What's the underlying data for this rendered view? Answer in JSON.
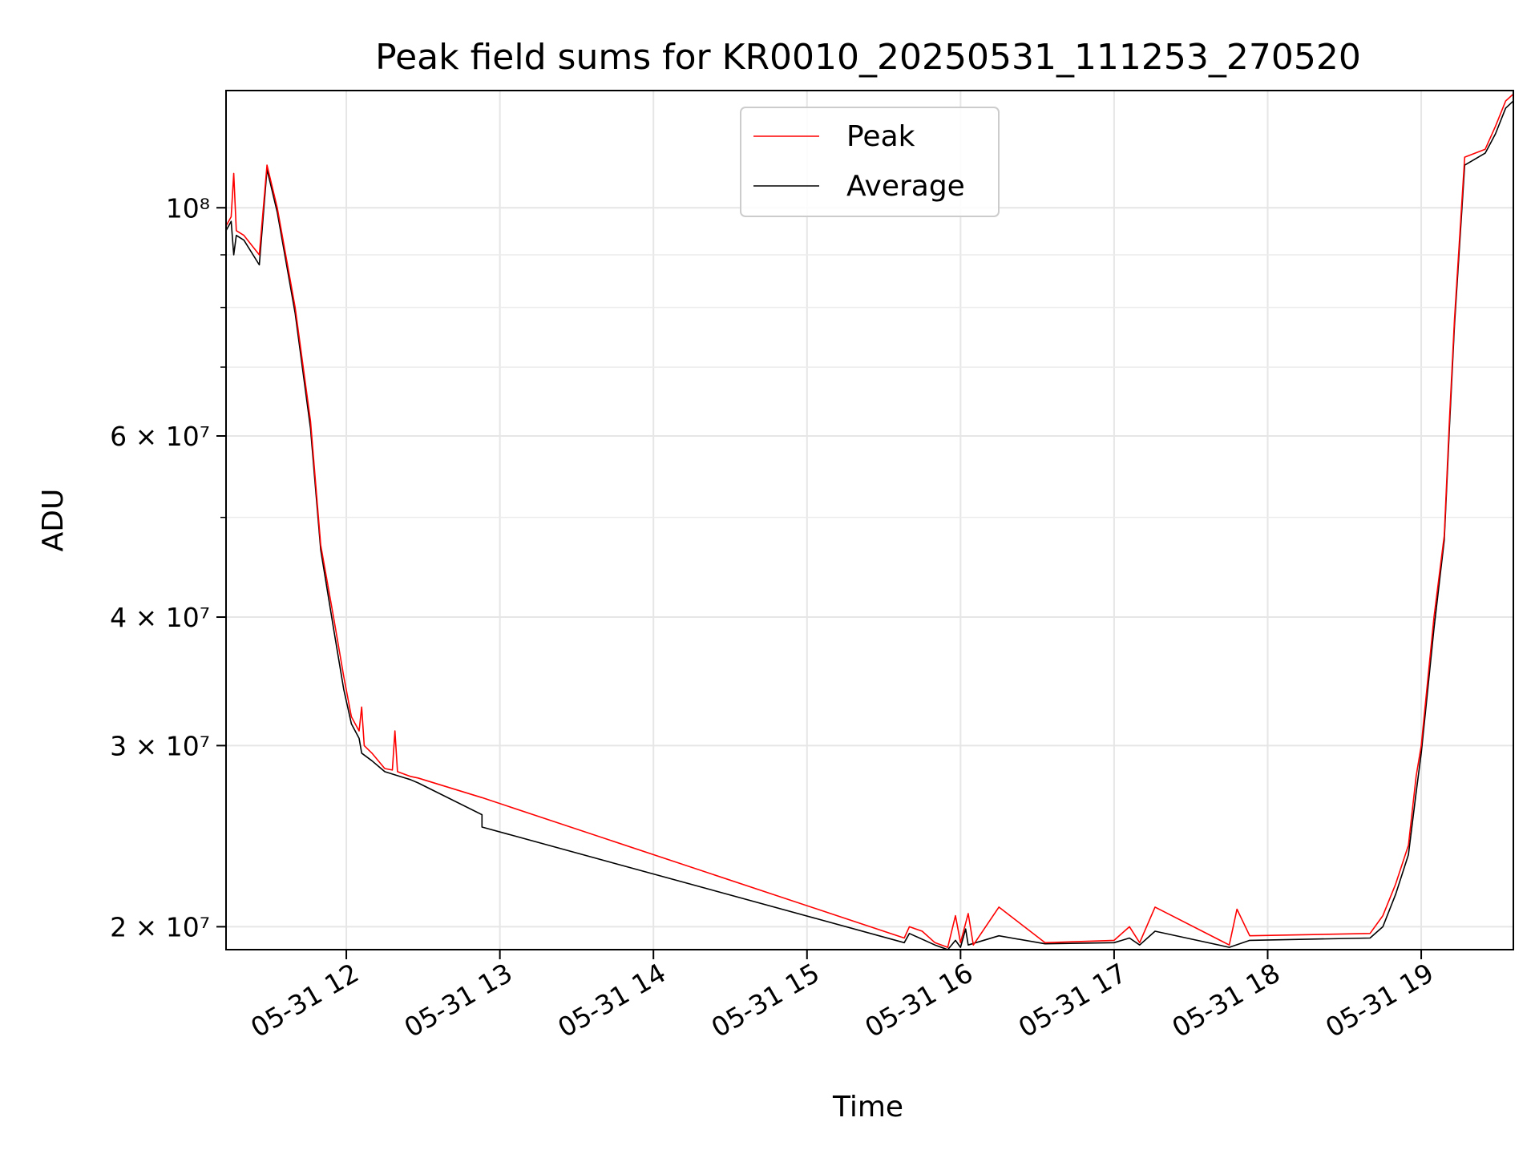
{
  "chart_data": {
    "type": "line",
    "title": "Peak field sums for KR0010_20250531_111253_270520",
    "xlabel": "Time",
    "ylabel": "ADU",
    "yscale": "log",
    "xlim": [
      "2025-05-31 11:13",
      "2025-05-31 19:36"
    ],
    "ylim": [
      19000000,
      130000000
    ],
    "grid": true,
    "legend_position": "top-center",
    "x_ticks": [
      {
        "t": "2025-05-31 12:00",
        "label": "05-31 12"
      },
      {
        "t": "2025-05-31 13:00",
        "label": "05-31 13"
      },
      {
        "t": "2025-05-31 14:00",
        "label": "05-31 14"
      },
      {
        "t": "2025-05-31 15:00",
        "label": "05-31 15"
      },
      {
        "t": "2025-05-31 16:00",
        "label": "05-31 16"
      },
      {
        "t": "2025-05-31 17:00",
        "label": "05-31 17"
      },
      {
        "t": "2025-05-31 18:00",
        "label": "05-31 18"
      },
      {
        "t": "2025-05-31 19:00",
        "label": "05-31 19"
      }
    ],
    "y_ticks": [
      {
        "value": 20000000,
        "label": "2 × 10⁷"
      },
      {
        "value": 30000000,
        "label": "3 × 10⁷"
      },
      {
        "value": 40000000,
        "label": "4 × 10⁷"
      },
      {
        "value": 60000000,
        "label": "6 × 10⁷"
      },
      {
        "value": 100000000,
        "label": "10⁸"
      }
    ],
    "y_minor_ticks": [
      50000000,
      70000000,
      80000000,
      90000000
    ],
    "series": [
      {
        "name": "Peak",
        "color": "#ff0000",
        "points": [
          [
            "2025-05-31 11:13",
            96000000
          ],
          [
            "2025-05-31 11:15",
            98000000
          ],
          [
            "2025-05-31 11:16",
            108000000
          ],
          [
            "2025-05-31 11:17",
            95000000
          ],
          [
            "2025-05-31 11:20",
            94000000
          ],
          [
            "2025-05-31 11:26",
            90000000
          ],
          [
            "2025-05-31 11:29",
            110000000
          ],
          [
            "2025-05-31 11:33",
            100000000
          ],
          [
            "2025-05-31 11:40",
            80000000
          ],
          [
            "2025-05-31 11:46",
            62000000
          ],
          [
            "2025-05-31 11:50",
            47000000
          ],
          [
            "2025-05-31 11:55",
            40000000
          ],
          [
            "2025-05-31 11:59",
            35000000
          ],
          [
            "2025-05-31 12:02",
            32000000
          ],
          [
            "2025-05-31 12:05",
            31000000
          ],
          [
            "2025-05-31 12:06",
            32700000
          ],
          [
            "2025-05-31 12:07",
            30000000
          ],
          [
            "2025-05-31 12:10",
            29500000
          ],
          [
            "2025-05-31 12:15",
            28500000
          ],
          [
            "2025-05-31 12:18",
            28400000
          ],
          [
            "2025-05-31 12:19",
            31000000
          ],
          [
            "2025-05-31 12:20",
            28300000
          ],
          [
            "2025-05-31 12:25",
            28000000
          ],
          [
            "2025-05-31 12:28",
            27900000
          ],
          [
            "2025-05-31 12:53",
            26700000
          ],
          [
            "2025-05-31 15:38",
            19500000
          ],
          [
            "2025-05-31 15:40",
            20000000
          ],
          [
            "2025-05-31 15:45",
            19800000
          ],
          [
            "2025-05-31 15:50",
            19300000
          ],
          [
            "2025-05-31 15:55",
            19100000
          ],
          [
            "2025-05-31 15:58",
            20500000
          ],
          [
            "2025-05-31 16:00",
            19300000
          ],
          [
            "2025-05-31 16:03",
            20600000
          ],
          [
            "2025-05-31 16:05",
            19200000
          ],
          [
            "2025-05-31 16:15",
            20900000
          ],
          [
            "2025-05-31 16:33",
            19300000
          ],
          [
            "2025-05-31 17:00",
            19400000
          ],
          [
            "2025-05-31 17:06",
            20000000
          ],
          [
            "2025-05-31 17:10",
            19300000
          ],
          [
            "2025-05-31 17:16",
            20900000
          ],
          [
            "2025-05-31 17:45",
            19200000
          ],
          [
            "2025-05-31 17:48",
            20800000
          ],
          [
            "2025-05-31 17:53",
            19600000
          ],
          [
            "2025-05-31 18:40",
            19700000
          ],
          [
            "2025-05-31 18:45",
            20500000
          ],
          [
            "2025-05-31 18:50",
            22000000
          ],
          [
            "2025-05-31 18:55",
            24000000
          ],
          [
            "2025-05-31 18:58",
            28000000
          ],
          [
            "2025-05-31 19:00",
            30000000
          ],
          [
            "2025-05-31 19:05",
            40000000
          ],
          [
            "2025-05-31 19:09",
            48000000
          ],
          [
            "2025-05-31 19:11",
            62000000
          ],
          [
            "2025-05-31 19:13",
            78000000
          ],
          [
            "2025-05-31 19:17",
            112000000
          ],
          [
            "2025-05-31 19:25",
            114000000
          ],
          [
            "2025-05-31 19:29",
            120000000
          ],
          [
            "2025-05-31 19:33",
            127000000
          ],
          [
            "2025-05-31 19:36",
            129000000
          ]
        ]
      },
      {
        "name": "Average",
        "color": "#000000",
        "points": [
          [
            "2025-05-31 11:13",
            95000000
          ],
          [
            "2025-05-31 11:15",
            97000000
          ],
          [
            "2025-05-31 11:16",
            90000000
          ],
          [
            "2025-05-31 11:17",
            94000000
          ],
          [
            "2025-05-31 11:20",
            93000000
          ],
          [
            "2025-05-31 11:26",
            88000000
          ],
          [
            "2025-05-31 11:29",
            109000000
          ],
          [
            "2025-05-31 11:33",
            99000000
          ],
          [
            "2025-05-31 11:40",
            79000000
          ],
          [
            "2025-05-31 11:46",
            61000000
          ],
          [
            "2025-05-31 11:50",
            46500000
          ],
          [
            "2025-05-31 11:55",
            39000000
          ],
          [
            "2025-05-31 11:59",
            34000000
          ],
          [
            "2025-05-31 12:02",
            31500000
          ],
          [
            "2025-05-31 12:05",
            30500000
          ],
          [
            "2025-05-31 12:06",
            29500000
          ],
          [
            "2025-05-31 12:10",
            29000000
          ],
          [
            "2025-05-31 12:15",
            28300000
          ],
          [
            "2025-05-31 12:19",
            28100000
          ],
          [
            "2025-05-31 12:25",
            27800000
          ],
          [
            "2025-05-31 12:28",
            27600000
          ],
          [
            "2025-05-31 12:53",
            25700000
          ],
          [
            "2025-05-31 12:53",
            25000000
          ],
          [
            "2025-05-31 15:38",
            19300000
          ],
          [
            "2025-05-31 15:40",
            19700000
          ],
          [
            "2025-05-31 15:50",
            19200000
          ],
          [
            "2025-05-31 15:55",
            19000000
          ],
          [
            "2025-05-31 15:58",
            19400000
          ],
          [
            "2025-05-31 16:00",
            19100000
          ],
          [
            "2025-05-31 16:02",
            19900000
          ],
          [
            "2025-05-31 16:03",
            19200000
          ],
          [
            "2025-05-31 16:15",
            19600000
          ],
          [
            "2025-05-31 16:33",
            19250000
          ],
          [
            "2025-05-31 17:00",
            19300000
          ],
          [
            "2025-05-31 17:06",
            19500000
          ],
          [
            "2025-05-31 17:10",
            19200000
          ],
          [
            "2025-05-31 17:16",
            19800000
          ],
          [
            "2025-05-31 17:45",
            19100000
          ],
          [
            "2025-05-31 17:53",
            19400000
          ],
          [
            "2025-05-31 18:40",
            19500000
          ],
          [
            "2025-05-31 18:45",
            20000000
          ],
          [
            "2025-05-31 18:50",
            21500000
          ],
          [
            "2025-05-31 18:55",
            23500000
          ],
          [
            "2025-05-31 18:58",
            27000000
          ],
          [
            "2025-05-31 19:00",
            29500000
          ],
          [
            "2025-05-31 19:05",
            39000000
          ],
          [
            "2025-05-31 19:09",
            47500000
          ],
          [
            "2025-05-31 19:11",
            61000000
          ],
          [
            "2025-05-31 19:13",
            77000000
          ],
          [
            "2025-05-31 19:17",
            110000000
          ],
          [
            "2025-05-31 19:25",
            113000000
          ],
          [
            "2025-05-31 19:29",
            118000000
          ],
          [
            "2025-05-31 19:33",
            125000000
          ],
          [
            "2025-05-31 19:36",
            127000000
          ]
        ]
      }
    ]
  }
}
